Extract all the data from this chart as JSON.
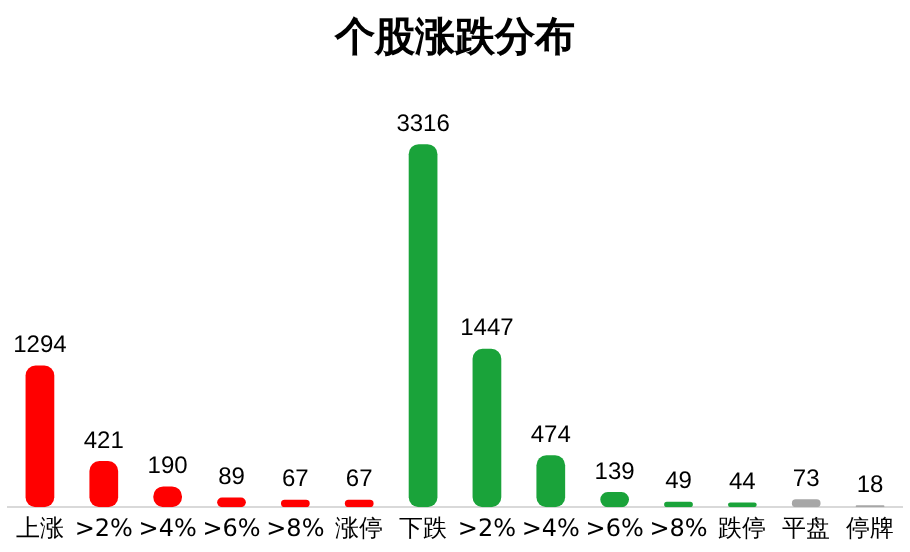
{
  "chart_data": {
    "type": "bar",
    "title": "个股涨跌分布",
    "categories": [
      "上涨",
      ">2%",
      ">4%",
      ">6%",
      ">8%",
      "涨停",
      "下跌",
      ">2%",
      ">4%",
      ">6%",
      ">8%",
      "跌停",
      "平盘",
      "停牌"
    ],
    "values": [
      1294,
      421,
      190,
      89,
      67,
      67,
      3316,
      1447,
      474,
      139,
      49,
      44,
      73,
      18
    ],
    "colors": [
      "#ff0000",
      "#ff0000",
      "#ff0000",
      "#ff0000",
      "#ff0000",
      "#ff0000",
      "#1aa33a",
      "#1aa33a",
      "#1aa33a",
      "#1aa33a",
      "#1aa33a",
      "#1aa33a",
      "#a6a6a6",
      "#a6a6a6"
    ],
    "data_labels": true,
    "grid": false,
    "legend": false
  }
}
